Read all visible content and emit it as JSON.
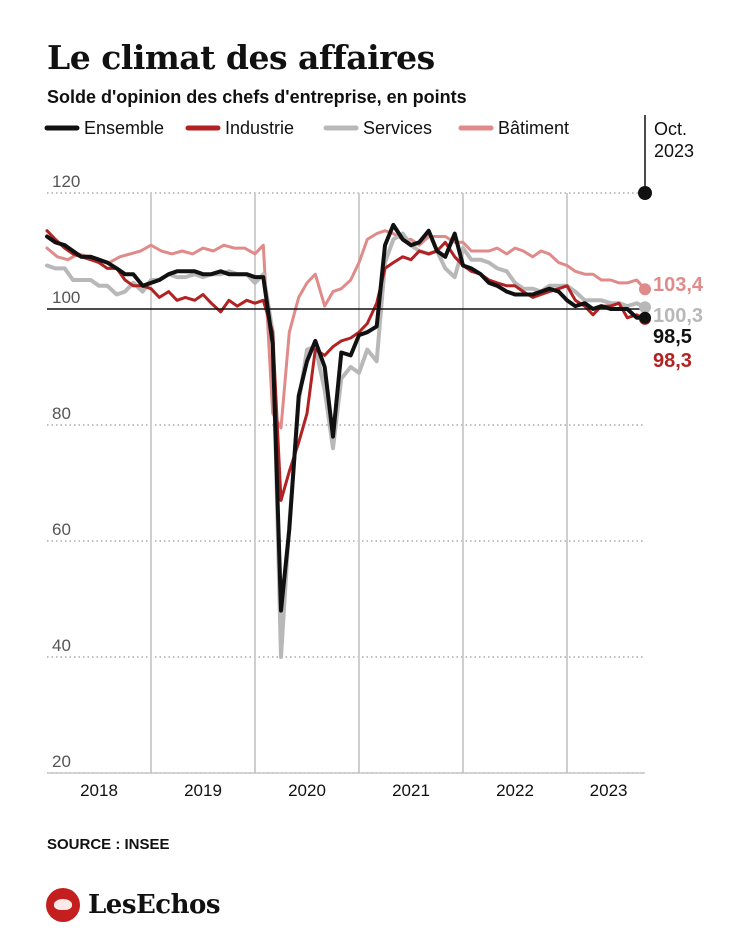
{
  "title": "Le climat des affaires",
  "subtitle": "Solde d'opinion des chefs d'entreprise, en points",
  "source": "SOURCE : INSEE",
  "brand": "LesEchos",
  "chart_data": {
    "type": "line",
    "ylim": [
      20,
      120
    ],
    "yticks": [
      20,
      40,
      60,
      80,
      100,
      120
    ],
    "xlim": [
      2018.0,
      2023.75
    ],
    "xticks": [
      {
        "label": "2018",
        "pos": 2018.5
      },
      {
        "label": "2019",
        "pos": 2019.5
      },
      {
        "label": "2020",
        "pos": 2020.5
      },
      {
        "label": "2021",
        "pos": 2021.5
      },
      {
        "label": "2022",
        "pos": 2022.5
      },
      {
        "label": "2023",
        "pos": 2023.4
      }
    ],
    "year_separators": [
      2019,
      2020,
      2021,
      2022,
      2023
    ],
    "reference_line": 100,
    "marker": {
      "label_line1": "Oct.",
      "label_line2": "2023",
      "x": 2023.75,
      "y": 120
    },
    "end_labels": [
      {
        "series": "Bâtiment",
        "text": "103,4"
      },
      {
        "series": "Services",
        "text": "100,3"
      },
      {
        "series": "Ensemble",
        "text": "98,5"
      },
      {
        "series": "Industrie",
        "text": "98,3"
      }
    ],
    "series": [
      {
        "name": "Bâtiment",
        "color": "#e08a8a",
        "width": 3,
        "points": [
          [
            2018.0,
            110.5
          ],
          [
            2018.1,
            109.0
          ],
          [
            2018.2,
            108.5
          ],
          [
            2018.3,
            109.5
          ],
          [
            2018.4,
            109.0
          ],
          [
            2018.5,
            108.5
          ],
          [
            2018.6,
            108.0
          ],
          [
            2018.7,
            109.0
          ],
          [
            2018.8,
            109.5
          ],
          [
            2018.9,
            110.0
          ],
          [
            2019.0,
            111.0
          ],
          [
            2019.1,
            110.0
          ],
          [
            2019.2,
            109.5
          ],
          [
            2019.3,
            110.0
          ],
          [
            2019.4,
            109.5
          ],
          [
            2019.5,
            110.5
          ],
          [
            2019.6,
            110.0
          ],
          [
            2019.7,
            111.0
          ],
          [
            2019.8,
            110.5
          ],
          [
            2019.9,
            110.5
          ],
          [
            2020.0,
            109.5
          ],
          [
            2020.08,
            111.0
          ],
          [
            2020.17,
            82.0
          ],
          [
            2020.25,
            79.5
          ],
          [
            2020.33,
            96.0
          ],
          [
            2020.42,
            102.0
          ],
          [
            2020.5,
            104.5
          ],
          [
            2020.58,
            106.0
          ],
          [
            2020.67,
            100.5
          ],
          [
            2020.75,
            103.0
          ],
          [
            2020.83,
            103.5
          ],
          [
            2020.92,
            105.0
          ],
          [
            2021.0,
            108.0
          ],
          [
            2021.08,
            112.0
          ],
          [
            2021.17,
            113.0
          ],
          [
            2021.25,
            113.5
          ],
          [
            2021.33,
            113.0
          ],
          [
            2021.42,
            112.0
          ],
          [
            2021.5,
            112.0
          ],
          [
            2021.58,
            111.0
          ],
          [
            2021.67,
            112.5
          ],
          [
            2021.75,
            112.5
          ],
          [
            2021.83,
            112.5
          ],
          [
            2021.92,
            111.5
          ],
          [
            2022.0,
            111.5
          ],
          [
            2022.08,
            110.0
          ],
          [
            2022.17,
            110.0
          ],
          [
            2022.25,
            110.0
          ],
          [
            2022.33,
            110.5
          ],
          [
            2022.42,
            109.5
          ],
          [
            2022.5,
            110.5
          ],
          [
            2022.58,
            110.0
          ],
          [
            2022.67,
            109.0
          ],
          [
            2022.75,
            110.0
          ],
          [
            2022.83,
            109.5
          ],
          [
            2022.92,
            108.0
          ],
          [
            2023.0,
            107.5
          ],
          [
            2023.08,
            106.5
          ],
          [
            2023.17,
            106.0
          ],
          [
            2023.25,
            106.0
          ],
          [
            2023.33,
            105.0
          ],
          [
            2023.42,
            105.0
          ],
          [
            2023.5,
            104.5
          ],
          [
            2023.58,
            104.5
          ],
          [
            2023.67,
            105.0
          ],
          [
            2023.75,
            103.4
          ]
        ]
      },
      {
        "name": "Services",
        "color": "#b8b8b8",
        "width": 4,
        "points": [
          [
            2018.0,
            107.5
          ],
          [
            2018.08,
            107.0
          ],
          [
            2018.17,
            107.0
          ],
          [
            2018.25,
            105.0
          ],
          [
            2018.33,
            105.0
          ],
          [
            2018.42,
            105.0
          ],
          [
            2018.5,
            104.0
          ],
          [
            2018.58,
            104.0
          ],
          [
            2018.67,
            102.5
          ],
          [
            2018.75,
            103.0
          ],
          [
            2018.83,
            104.5
          ],
          [
            2018.92,
            103.0
          ],
          [
            2019.0,
            105.0
          ],
          [
            2019.08,
            105.0
          ],
          [
            2019.17,
            106.0
          ],
          [
            2019.25,
            105.5
          ],
          [
            2019.33,
            105.5
          ],
          [
            2019.42,
            106.0
          ],
          [
            2019.5,
            105.5
          ],
          [
            2019.58,
            106.0
          ],
          [
            2019.67,
            106.0
          ],
          [
            2019.75,
            106.5
          ],
          [
            2019.83,
            106.0
          ],
          [
            2019.92,
            106.0
          ],
          [
            2020.0,
            104.5
          ],
          [
            2020.08,
            106.0
          ],
          [
            2020.17,
            96.0
          ],
          [
            2020.25,
            40.0
          ],
          [
            2020.33,
            63.0
          ],
          [
            2020.42,
            84.0
          ],
          [
            2020.5,
            93.0
          ],
          [
            2020.58,
            93.5
          ],
          [
            2020.67,
            86.0
          ],
          [
            2020.75,
            76.0
          ],
          [
            2020.83,
            88.0
          ],
          [
            2020.92,
            90.0
          ],
          [
            2021.0,
            89.0
          ],
          [
            2021.08,
            93.0
          ],
          [
            2021.17,
            91.0
          ],
          [
            2021.25,
            108.0
          ],
          [
            2021.33,
            112.0
          ],
          [
            2021.42,
            113.0
          ],
          [
            2021.5,
            111.0
          ],
          [
            2021.58,
            110.0
          ],
          [
            2021.67,
            109.5
          ],
          [
            2021.75,
            110.0
          ],
          [
            2021.83,
            107.0
          ],
          [
            2021.92,
            105.5
          ],
          [
            2022.0,
            110.5
          ],
          [
            2022.08,
            108.5
          ],
          [
            2022.17,
            108.5
          ],
          [
            2022.25,
            108.0
          ],
          [
            2022.33,
            107.0
          ],
          [
            2022.42,
            106.5
          ],
          [
            2022.5,
            104.5
          ],
          [
            2022.58,
            103.5
          ],
          [
            2022.67,
            103.5
          ],
          [
            2022.75,
            103.0
          ],
          [
            2022.83,
            104.0
          ],
          [
            2022.92,
            104.0
          ],
          [
            2023.0,
            104.0
          ],
          [
            2023.08,
            103.0
          ],
          [
            2023.17,
            101.5
          ],
          [
            2023.25,
            101.5
          ],
          [
            2023.33,
            101.5
          ],
          [
            2023.42,
            101.0
          ],
          [
            2023.5,
            101.0
          ],
          [
            2023.58,
            100.5
          ],
          [
            2023.67,
            101.0
          ],
          [
            2023.75,
            100.3
          ]
        ]
      },
      {
        "name": "Industrie",
        "color": "#b22222",
        "width": 3,
        "points": [
          [
            2018.0,
            113.5
          ],
          [
            2018.08,
            112.0
          ],
          [
            2018.17,
            110.5
          ],
          [
            2018.25,
            109.5
          ],
          [
            2018.33,
            109.0
          ],
          [
            2018.42,
            108.5
          ],
          [
            2018.5,
            108.0
          ],
          [
            2018.58,
            107.0
          ],
          [
            2018.67,
            107.0
          ],
          [
            2018.75,
            105.0
          ],
          [
            2018.83,
            104.0
          ],
          [
            2018.92,
            104.0
          ],
          [
            2019.0,
            103.5
          ],
          [
            2019.08,
            102.0
          ],
          [
            2019.17,
            103.0
          ],
          [
            2019.25,
            101.5
          ],
          [
            2019.33,
            102.0
          ],
          [
            2019.42,
            101.5
          ],
          [
            2019.5,
            102.5
          ],
          [
            2019.58,
            101.0
          ],
          [
            2019.67,
            99.5
          ],
          [
            2019.75,
            101.5
          ],
          [
            2019.83,
            100.5
          ],
          [
            2019.92,
            101.5
          ],
          [
            2020.0,
            101.0
          ],
          [
            2020.08,
            101.5
          ],
          [
            2020.17,
            96.0
          ],
          [
            2020.25,
            67.0
          ],
          [
            2020.33,
            72.0
          ],
          [
            2020.42,
            77.0
          ],
          [
            2020.5,
            82.0
          ],
          [
            2020.58,
            93.0
          ],
          [
            2020.67,
            92.0
          ],
          [
            2020.75,
            93.5
          ],
          [
            2020.83,
            94.5
          ],
          [
            2020.92,
            95.0
          ],
          [
            2021.0,
            96.0
          ],
          [
            2021.08,
            97.5
          ],
          [
            2021.17,
            101.0
          ],
          [
            2021.25,
            107.0
          ],
          [
            2021.33,
            108.0
          ],
          [
            2021.42,
            109.0
          ],
          [
            2021.5,
            108.5
          ],
          [
            2021.58,
            110.0
          ],
          [
            2021.67,
            109.5
          ],
          [
            2021.75,
            110.0
          ],
          [
            2021.83,
            111.5
          ],
          [
            2021.92,
            109.0
          ],
          [
            2022.0,
            107.5
          ],
          [
            2022.08,
            106.5
          ],
          [
            2022.17,
            106.0
          ],
          [
            2022.25,
            105.0
          ],
          [
            2022.33,
            104.5
          ],
          [
            2022.42,
            104.0
          ],
          [
            2022.5,
            104.0
          ],
          [
            2022.58,
            103.0
          ],
          [
            2022.67,
            102.0
          ],
          [
            2022.75,
            102.5
          ],
          [
            2022.83,
            103.0
          ],
          [
            2022.92,
            103.5
          ],
          [
            2023.0,
            104.0
          ],
          [
            2023.08,
            101.5
          ],
          [
            2023.17,
            100.5
          ],
          [
            2023.25,
            99.0
          ],
          [
            2023.33,
            100.5
          ],
          [
            2023.42,
            100.5
          ],
          [
            2023.5,
            101.0
          ],
          [
            2023.58,
            98.5
          ],
          [
            2023.67,
            99.0
          ],
          [
            2023.75,
            98.3
          ]
        ]
      },
      {
        "name": "Ensemble",
        "color": "#111111",
        "width": 4,
        "points": [
          [
            2018.0,
            112.5
          ],
          [
            2018.08,
            111.5
          ],
          [
            2018.17,
            111.0
          ],
          [
            2018.25,
            110.0
          ],
          [
            2018.33,
            109.0
          ],
          [
            2018.42,
            109.0
          ],
          [
            2018.5,
            108.5
          ],
          [
            2018.58,
            108.0
          ],
          [
            2018.67,
            107.0
          ],
          [
            2018.75,
            106.0
          ],
          [
            2018.83,
            106.0
          ],
          [
            2018.92,
            104.0
          ],
          [
            2019.0,
            104.5
          ],
          [
            2019.08,
            105.0
          ],
          [
            2019.17,
            106.0
          ],
          [
            2019.25,
            106.5
          ],
          [
            2019.33,
            106.5
          ],
          [
            2019.42,
            106.5
          ],
          [
            2019.5,
            106.0
          ],
          [
            2019.58,
            106.0
          ],
          [
            2019.67,
            106.5
          ],
          [
            2019.75,
            106.0
          ],
          [
            2019.83,
            106.0
          ],
          [
            2019.92,
            106.0
          ],
          [
            2020.0,
            105.5
          ],
          [
            2020.08,
            105.5
          ],
          [
            2020.17,
            94.0
          ],
          [
            2020.25,
            48.0
          ],
          [
            2020.33,
            62.0
          ],
          [
            2020.42,
            85.0
          ],
          [
            2020.5,
            91.0
          ],
          [
            2020.58,
            94.5
          ],
          [
            2020.67,
            90.0
          ],
          [
            2020.75,
            78.0
          ],
          [
            2020.83,
            92.5
          ],
          [
            2020.92,
            92.0
          ],
          [
            2021.0,
            95.5
          ],
          [
            2021.08,
            96.0
          ],
          [
            2021.17,
            97.0
          ],
          [
            2021.25,
            111.0
          ],
          [
            2021.33,
            114.5
          ],
          [
            2021.42,
            112.0
          ],
          [
            2021.5,
            111.0
          ],
          [
            2021.58,
            111.5
          ],
          [
            2021.67,
            113.5
          ],
          [
            2021.75,
            110.0
          ],
          [
            2021.83,
            109.0
          ],
          [
            2021.92,
            113.0
          ],
          [
            2022.0,
            107.5
          ],
          [
            2022.08,
            107.0
          ],
          [
            2022.17,
            106.0
          ],
          [
            2022.25,
            104.5
          ],
          [
            2022.33,
            104.0
          ],
          [
            2022.42,
            103.0
          ],
          [
            2022.5,
            102.5
          ],
          [
            2022.58,
            102.5
          ],
          [
            2022.67,
            102.5
          ],
          [
            2022.75,
            103.0
          ],
          [
            2022.83,
            103.5
          ],
          [
            2022.92,
            103.0
          ],
          [
            2023.0,
            101.5
          ],
          [
            2023.08,
            100.5
          ],
          [
            2023.17,
            101.0
          ],
          [
            2023.25,
            100.0
          ],
          [
            2023.33,
            100.5
          ],
          [
            2023.42,
            100.0
          ],
          [
            2023.5,
            100.0
          ],
          [
            2023.58,
            100.0
          ],
          [
            2023.67,
            98.5
          ],
          [
            2023.75,
            98.5
          ]
        ]
      }
    ],
    "legend": [
      {
        "name": "Ensemble",
        "color": "#111111"
      },
      {
        "name": "Industrie",
        "color": "#b22222"
      },
      {
        "name": "Services",
        "color": "#b8b8b8"
      },
      {
        "name": "Bâtiment",
        "color": "#e08a8a"
      }
    ]
  }
}
